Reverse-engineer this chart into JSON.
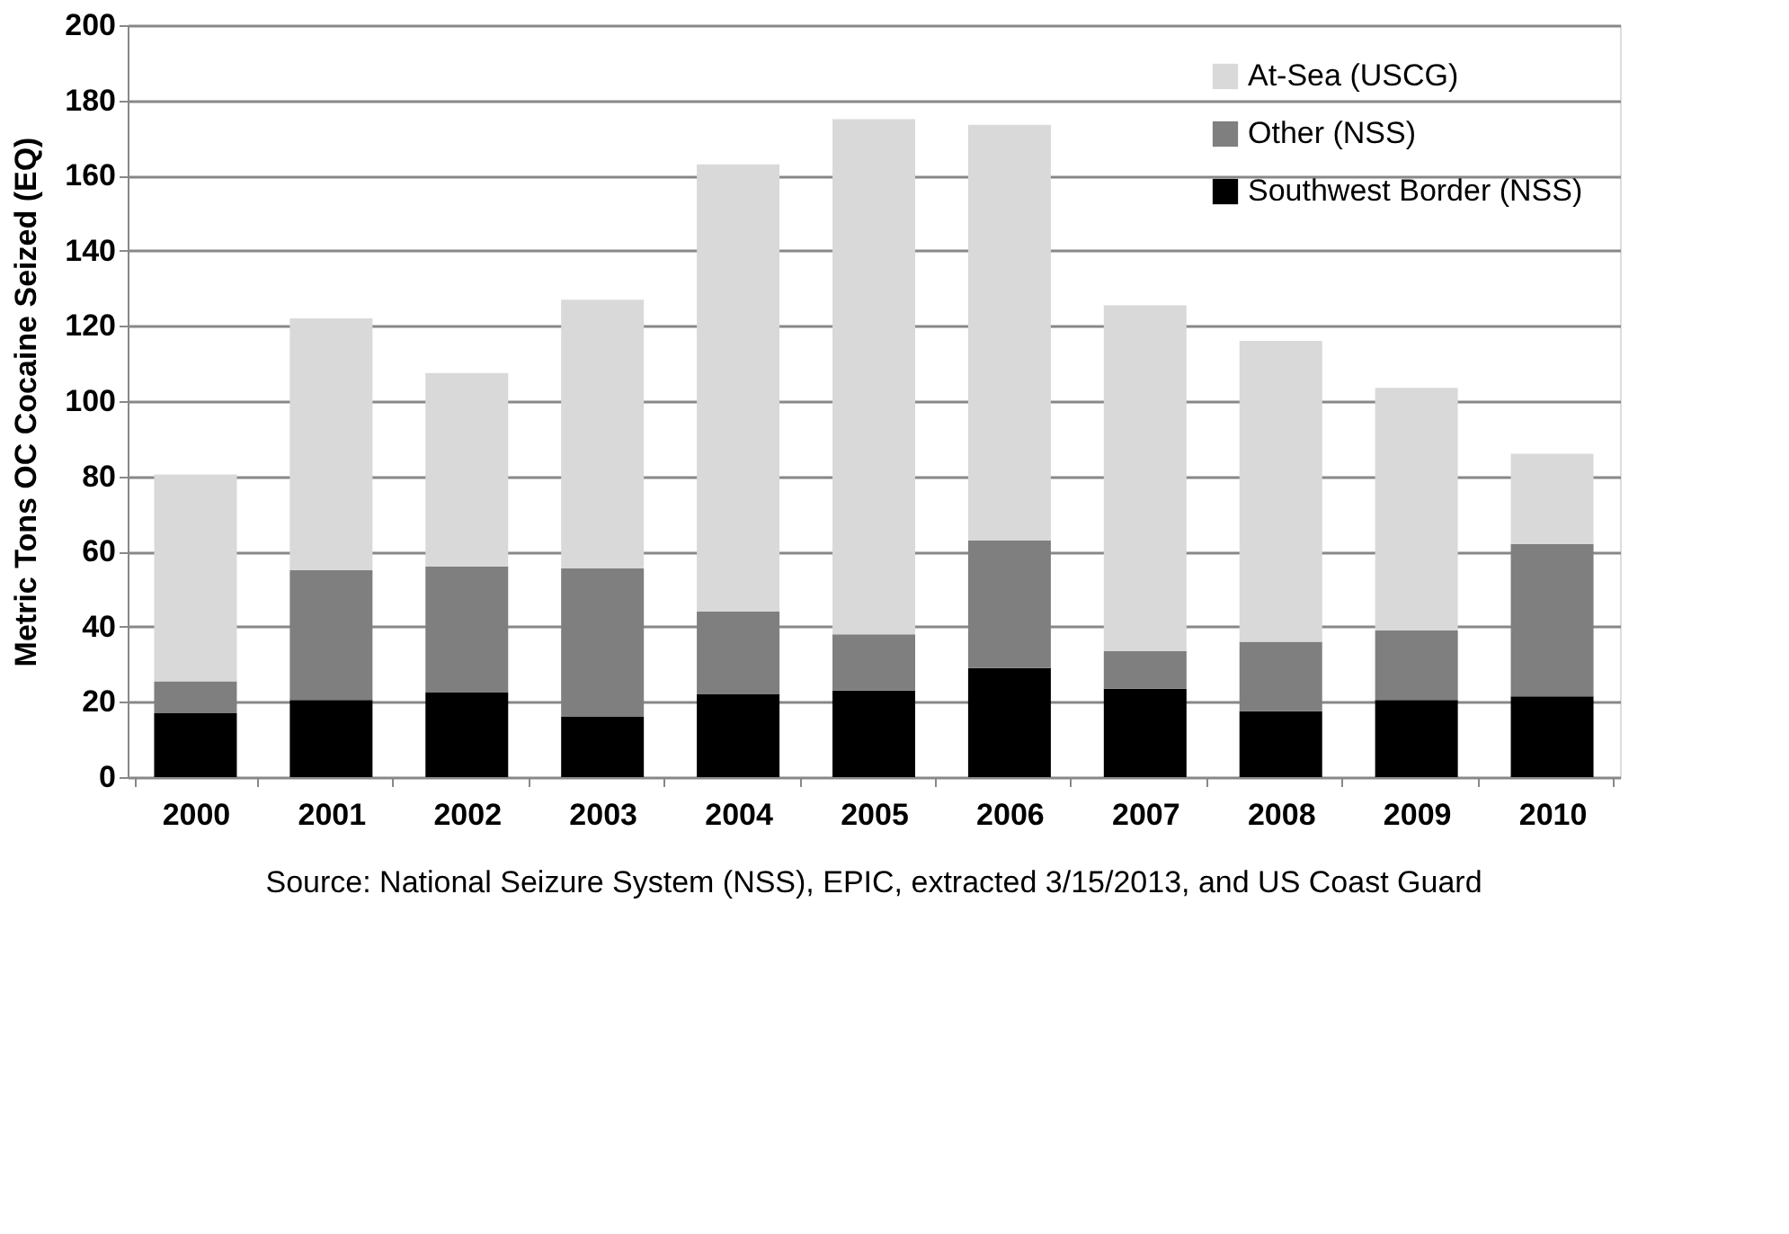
{
  "chart_data": {
    "type": "bar",
    "stacked": true,
    "ylabel": "Metric Tons OC Cocaine Seized (EQ)",
    "categories": [
      "2000",
      "2001",
      "2002",
      "2003",
      "2004",
      "2005",
      "2006",
      "2007",
      "2008",
      "2009",
      "2010"
    ],
    "series": [
      {
        "name": "Southwest Border (NSS)",
        "color": "#000000",
        "values": [
          17,
          20.5,
          22.5,
          16,
          22,
          23,
          29,
          23.5,
          17.5,
          20.5,
          21.5
        ]
      },
      {
        "name": "Other (NSS)",
        "color": "#7f7f7f",
        "values": [
          8.5,
          34.5,
          33.5,
          39.5,
          22,
          15,
          34,
          10,
          18.5,
          18.5,
          40.5
        ]
      },
      {
        "name": "At-Sea (USCG)",
        "color": "#d9d9d9",
        "values": [
          55,
          67,
          51.5,
          71.5,
          119,
          137,
          110.5,
          92,
          80,
          64.5,
          24
        ]
      }
    ],
    "ylim": [
      0,
      200
    ],
    "yticks": [
      0,
      20,
      40,
      60,
      80,
      100,
      120,
      140,
      160,
      180,
      200
    ],
    "grid": "y",
    "legend": "top right",
    "annotations": [
      "Source: National Seizure System (NSS), EPIC, extracted 3/15/2013, and US Coast Guard"
    ]
  }
}
